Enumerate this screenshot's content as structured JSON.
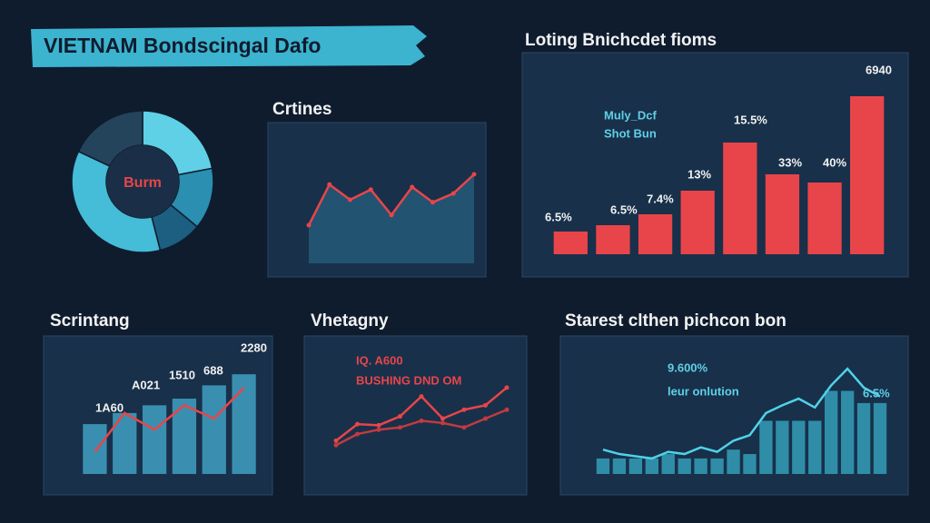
{
  "title": "VIETNAM Bondscingal Dafo",
  "chart_data": [
    {
      "type": "pie",
      "center_label": "Burm",
      "values": [
        22,
        14,
        10,
        36,
        18
      ],
      "colors": [
        "#5fd0e6",
        "#2a8fb0",
        "#1d5f80",
        "#45bcd8",
        "#24445c"
      ]
    },
    {
      "type": "line",
      "title": "Crtines",
      "values": [
        30,
        62,
        50,
        58,
        38,
        60,
        48,
        55,
        70
      ],
      "ylim": [
        0,
        100
      ],
      "color": "#e8454a",
      "area": true
    },
    {
      "type": "bar",
      "title": "Loting Bnichcdet fioms",
      "values": [
        25,
        32,
        44,
        70,
        123,
        88,
        79,
        174
      ],
      "ylim": [
        0,
        200
      ],
      "color": "#e8454a",
      "annotations": [
        "6.5%",
        "6.5%",
        "7.4%",
        "13%",
        "15.5%",
        "33%",
        "40%",
        "6940",
        "Muly_Dcf",
        "Shot Bun"
      ]
    },
    {
      "type": "bar",
      "title": "Scrintang",
      "values": [
        45,
        55,
        62,
        68,
        80,
        90
      ],
      "line_values": [
        20,
        55,
        40,
        62,
        50,
        78
      ],
      "ylim": [
        0,
        100
      ],
      "color": "#3a8fb0",
      "line_color": "#e8454a",
      "annotations": [
        "1A60",
        "A021",
        "1510",
        "688",
        "2280"
      ]
    },
    {
      "type": "line",
      "title": "Vhetagny",
      "ylim": [
        0,
        100
      ],
      "series": [
        {
          "color": "#e8454a",
          "values": [
            30,
            45,
            44,
            52,
            70,
            50,
            58,
            62,
            78
          ]
        },
        {
          "color": "#c23a40",
          "values": [
            26,
            36,
            40,
            42,
            48,
            46,
            42,
            50,
            58
          ]
        }
      ],
      "annotations": [
        "IQ. A600",
        "BUSHING DND OM"
      ]
    },
    {
      "type": "bar",
      "title": "Starest clthen pichcon bon",
      "values": [
        14,
        14,
        14,
        14,
        18,
        14,
        14,
        14,
        22,
        18,
        48,
        48,
        48,
        48,
        75,
        75,
        64,
        64
      ],
      "line_values": [
        22,
        18,
        16,
        14,
        20,
        18,
        24,
        20,
        30,
        35,
        55,
        62,
        68,
        60,
        80,
        95,
        78,
        70
      ],
      "ylim": [
        0,
        100
      ],
      "color": "#2f8da8",
      "line_color": "#4fd2e8",
      "annotations": [
        "9.600%",
        "leur onlution",
        "6.5%"
      ]
    }
  ]
}
